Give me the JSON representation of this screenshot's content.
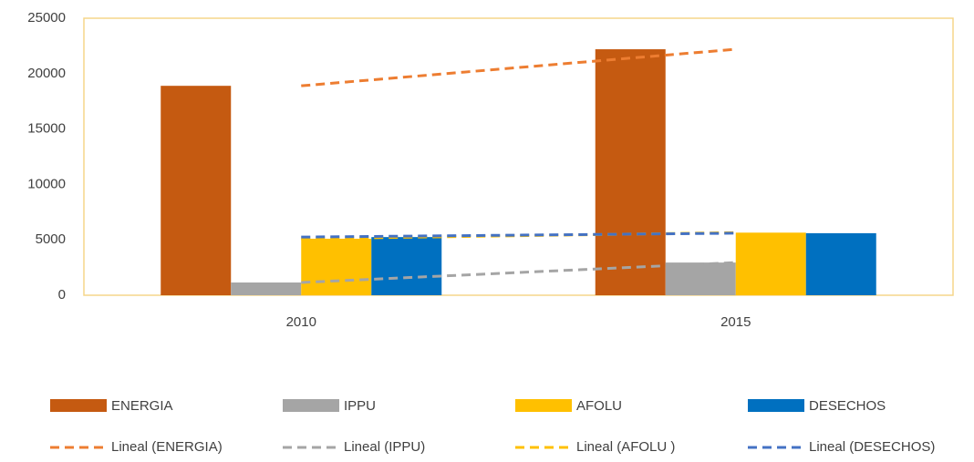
{
  "chart_data": {
    "type": "bar",
    "categories": [
      "2010",
      "2015"
    ],
    "series": [
      {
        "name": "ENERGIA",
        "color": "#c55a11",
        "values": [
          18900,
          22200
        ],
        "trend_name": "Lineal (ENERGIA)",
        "trend_color": "#ed7d31"
      },
      {
        "name": "IPPU",
        "color": "#a5a5a5",
        "values": [
          1150,
          2950
        ],
        "trend_name": "Lineal (IPPU)",
        "trend_color": "#a5a5a5"
      },
      {
        "name": "AFOLU",
        "color": "#ffc000",
        "values": [
          5100,
          5650
        ],
        "trend_name": "Lineal (AFOLU  )",
        "trend_color": "#ffc000"
      },
      {
        "name": "DESECHOS",
        "color": "#0070c0",
        "values": [
          5250,
          5600
        ],
        "trend_name": "Lineal (DESECHOS)",
        "trend_color": "#4472c4"
      }
    ],
    "ylim": [
      0,
      25000
    ],
    "yticks": [
      0,
      5000,
      10000,
      15000,
      20000,
      25000
    ],
    "grid": false
  }
}
